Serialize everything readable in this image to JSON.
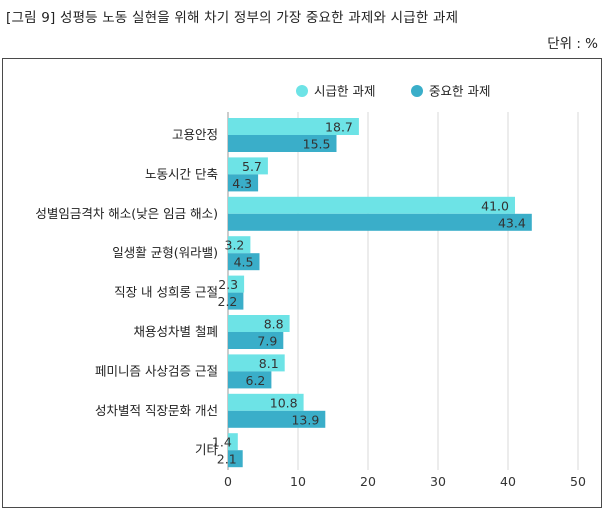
{
  "header": {
    "title": "[그림 9] 성평등 노동 실현을 위해 차기 정부의 가장 중요한 과제와 시급한 과제",
    "unit": "단위 : %"
  },
  "colors": {
    "urgent": "#6de3e6",
    "important": "#3aaec9",
    "grid": "#d9d9d9"
  },
  "chart_data": {
    "type": "bar",
    "orientation": "horizontal",
    "title": "",
    "xlim": [
      0,
      50
    ],
    "xticks": [
      0,
      10,
      20,
      30,
      40,
      50
    ],
    "grid": true,
    "legend_position": "top-right",
    "categories": [
      "고용안정",
      "노동시간 단축",
      "성별임금격차 해소(낮은 임금 해소)",
      "일생활 균형(워라밸)",
      "직장 내 성희롱 근절",
      "채용성차별 철폐",
      "페미니즘 사상검증 근절",
      "성차별적 직장문화 개선",
      "기타"
    ],
    "series": [
      {
        "name": "시급한 과제",
        "values": [
          18.7,
          5.7,
          41.0,
          3.2,
          2.3,
          8.8,
          8.1,
          10.8,
          1.4
        ]
      },
      {
        "name": "중요한 과제",
        "values": [
          15.5,
          4.3,
          43.4,
          4.5,
          2.2,
          7.9,
          6.2,
          13.9,
          2.1
        ]
      }
    ]
  }
}
